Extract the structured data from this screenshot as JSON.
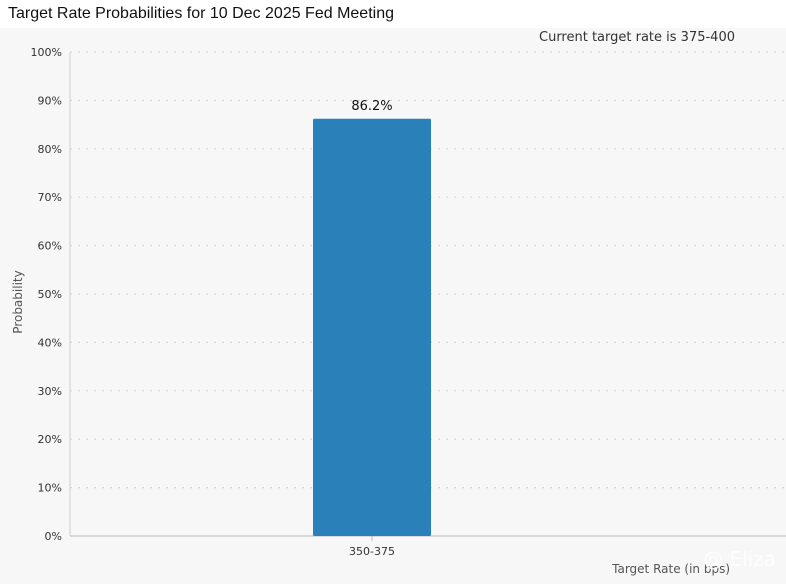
{
  "page": {
    "title": "Target Rate Probabilities for 10 Dec 2025 Fed Meeting"
  },
  "watermark": {
    "text": "@ Eliza"
  },
  "chart_data": {
    "type": "bar",
    "title": "Target Rate Probabilities for 10 Dec 2025 Fed Meeting",
    "annotation": "Current target rate is 375-400",
    "xlabel": "Target Rate (in bps)",
    "ylabel": "Probability",
    "categories": [
      "350-375"
    ],
    "values": [
      86.2
    ],
    "value_labels": [
      "86.2%"
    ],
    "ylim": [
      0,
      100
    ],
    "yticks": [
      0,
      10,
      20,
      30,
      40,
      50,
      60,
      70,
      80,
      90,
      100
    ],
    "ytick_labels": [
      "0%",
      "10%",
      "20%",
      "30%",
      "40%",
      "50%",
      "60%",
      "70%",
      "80%",
      "90%",
      "100%"
    ],
    "grid": true,
    "legend": "none",
    "colors": {
      "bar": "#2a80b9",
      "grid": "#d6d6d6",
      "background": "#f7f7f7"
    }
  }
}
